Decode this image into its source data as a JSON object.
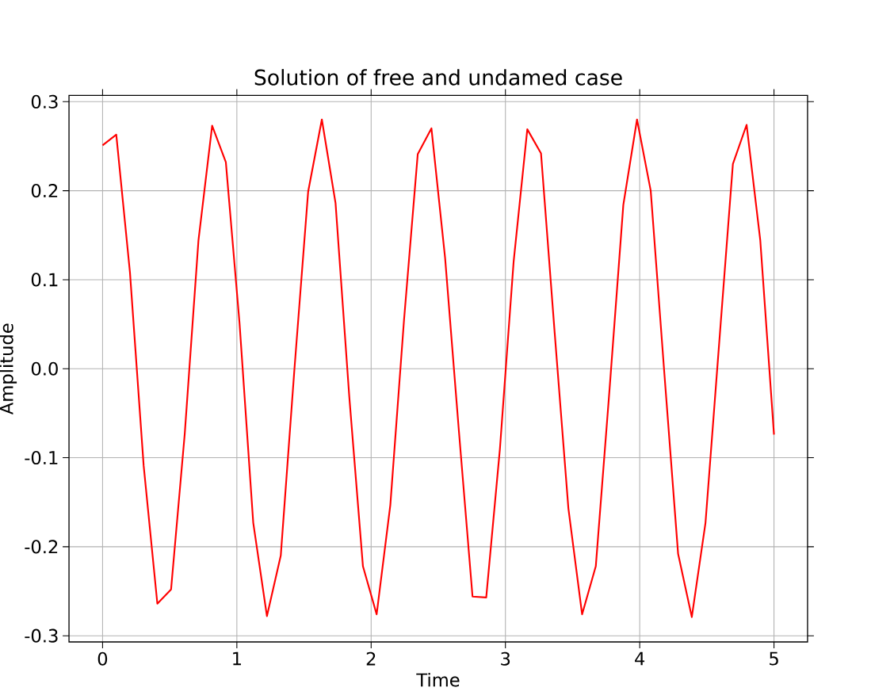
{
  "chart_data": {
    "type": "line",
    "title": "Solution of free and undamed case",
    "xlabel": "Time",
    "ylabel": "Amplitude",
    "x": [
      0,
      0.102,
      0.204,
      0.306,
      0.408,
      0.51,
      0.612,
      0.714,
      0.816,
      0.918,
      1.02,
      1.122,
      1.224,
      1.327,
      1.429,
      1.531,
      1.633,
      1.735,
      1.837,
      1.939,
      2.041,
      2.143,
      2.245,
      2.347,
      2.449,
      2.551,
      2.653,
      2.755,
      2.857,
      2.959,
      3.061,
      3.163,
      3.265,
      3.367,
      3.469,
      3.571,
      3.673,
      3.776,
      3.878,
      3.98,
      4.082,
      4.184,
      4.286,
      4.388,
      4.49,
      4.592,
      4.694,
      4.796,
      4.898,
      5.0
    ],
    "series": [
      {
        "color": "#ff0000",
        "values": [
          0.251,
          0.263,
          0.108,
          -0.109,
          -0.264,
          -0.248,
          -0.073,
          0.144,
          0.273,
          0.232,
          0.051,
          -0.173,
          -0.278,
          -0.21,
          0.0,
          0.199,
          0.28,
          0.186,
          -0.031,
          -0.222,
          -0.276,
          -0.153,
          0.055,
          0.241,
          0.27,
          0.124,
          -0.069,
          -0.256,
          -0.257,
          -0.09,
          0.12,
          0.269,
          0.242,
          0.04,
          -0.157,
          -0.276,
          -0.222,
          -0.022,
          0.184,
          0.28,
          0.2,
          -0.006,
          -0.208,
          -0.279,
          -0.173,
          0.029,
          0.23,
          0.274,
          0.144,
          -0.074
        ]
      }
    ],
    "xlim": [
      -0.25,
      5.25
    ],
    "ylim": [
      -0.307,
      0.307
    ],
    "xticks": [
      0,
      1,
      2,
      3,
      4,
      5
    ],
    "yticks": [
      -0.3,
      -0.2,
      -0.1,
      {
        "value": 0,
        "label": "0.0"
      },
      0.1,
      0.2,
      0.3
    ],
    "grid": true
  }
}
